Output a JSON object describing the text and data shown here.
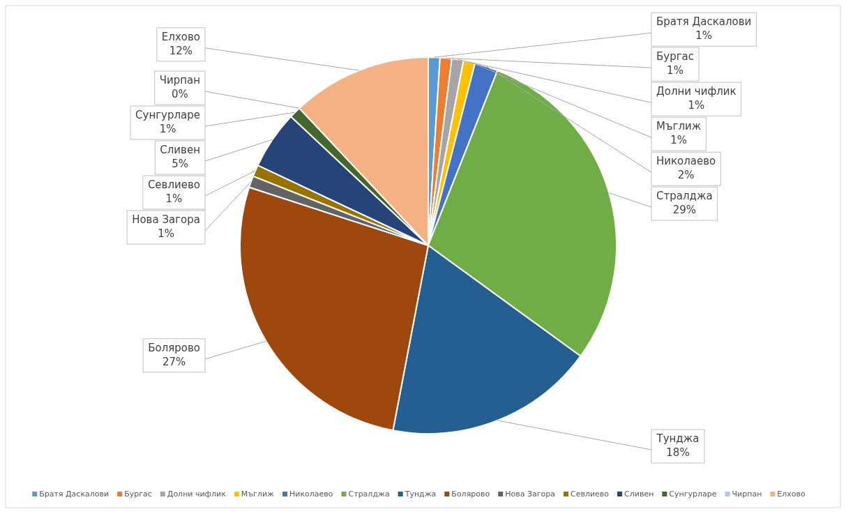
{
  "chart_data": {
    "type": "pie",
    "categories": [
      "Братя Даскалови",
      "Бургас",
      "Долни чифлик",
      "Мъглиж",
      "Николаево",
      "Стралджа",
      "Тунджа",
      "Болярово",
      "Нова Загора",
      "Севлиево",
      "Сливен",
      "Сунгурларе",
      "Чирпан",
      "Елхово"
    ],
    "values": [
      1,
      1,
      1,
      1,
      2,
      29,
      18,
      27,
      1,
      1,
      5,
      1,
      0,
      12
    ],
    "colors": [
      "#5b9bd5",
      "#ed7d31",
      "#a5a5a5",
      "#ffc000",
      "#4472c4",
      "#70ad47",
      "#255e91",
      "#9e480e",
      "#636363",
      "#997300",
      "#264478",
      "#43682b",
      "#b4c7e7",
      "#f4b183"
    ],
    "value_labels": [
      "1%",
      "1%",
      "1%",
      "1%",
      "2%",
      "29%",
      "18%",
      "27%",
      "1%",
      "1%",
      "5%",
      "1%",
      "0%",
      "12%"
    ],
    "legend": "bottom"
  }
}
